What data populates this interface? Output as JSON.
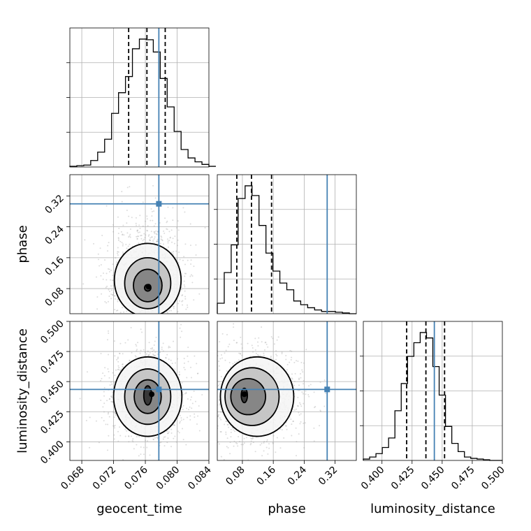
{
  "chart_data": {
    "type": "corner",
    "parameters": [
      {
        "name": "geocent_time",
        "range": [
          0.0665,
          0.084
        ],
        "ticks": [
          0.068,
          0.072,
          0.076,
          0.08,
          0.084
        ],
        "tick_labels": [
          "0.068",
          "0.072",
          "0.076",
          "0.080",
          "0.084"
        ],
        "truth": 0.0777,
        "quantiles": [
          0.0739,
          0.0762,
          0.0785
        ],
        "hist_edges_start": 0.0665,
        "hist_bin_width": 0.000875,
        "hist_counts": [
          1,
          2,
          3,
          10,
          23,
          43,
          83,
          115,
          140,
          183,
          198,
          197,
          178,
          137,
          93,
          55,
          27,
          14,
          8,
          4,
          1,
          1
        ]
      },
      {
        "name": "phase",
        "range": [
          0.015,
          0.375
        ],
        "ticks": [
          0.08,
          0.16,
          0.24,
          0.32
        ],
        "tick_labels": [
          "0.08",
          "0.16",
          "0.24",
          "0.32"
        ],
        "truth": 0.2995,
        "quantiles": [
          0.0655,
          0.1035,
          0.1555
        ],
        "hist_edges_start": 0.015,
        "hist_bin_width": 0.018,
        "hist_counts": [
          14,
          55,
          92,
          154,
          171,
          158,
          118,
          81,
          57,
          41,
          32,
          17,
          12,
          8,
          5,
          3,
          3,
          2,
          1,
          0
        ]
      },
      {
        "name": "luminosity_distance",
        "range": [
          0.3845,
          0.5
        ],
        "ticks": [
          0.4,
          0.425,
          0.45,
          0.475,
          0.5
        ],
        "tick_labels": [
          "0.400",
          "0.425",
          "0.450",
          "0.475",
          "0.500"
        ],
        "truth": 0.4435,
        "quantiles": [
          0.4205,
          0.4365,
          0.452
        ],
        "hist_edges_start": 0.3845,
        "hist_bin_width": 0.00525,
        "hist_counts": [
          2,
          5,
          10,
          19,
          33,
          73,
          113,
          153,
          173,
          188,
          180,
          138,
          96,
          50,
          25,
          13,
          5,
          3,
          2,
          1,
          0,
          0
        ]
      }
    ],
    "pairs": [
      {
        "x": "geocent_time",
        "y": "phase",
        "contours": [
          {
            "center": [
              0.0763,
              0.082
            ],
            "rx": 0.0004,
            "ry": 0.0085
          },
          {
            "center": [
              0.0763,
              0.088
            ],
            "rx": 0.0018,
            "ry": 0.042
          },
          {
            "center": [
              0.0763,
              0.094
            ],
            "rx": 0.0029,
            "ry": 0.066
          },
          {
            "center": [
              0.0763,
              0.102
            ],
            "rx": 0.0042,
            "ry": 0.095
          }
        ],
        "peak": [
          0.0764,
          0.085
        ]
      },
      {
        "x": "geocent_time",
        "y": "luminosity_distance",
        "contours": [
          {
            "center": [
              0.0763,
              0.4385
            ],
            "rx": 0.0005,
            "ry": 0.008
          },
          {
            "center": [
              0.0763,
              0.4375
            ],
            "rx": 0.0017,
            "ry": 0.014
          },
          {
            "center": [
              0.0763,
              0.4375
            ],
            "rx": 0.0029,
            "ry": 0.023
          },
          {
            "center": [
              0.0763,
              0.4375
            ],
            "rx": 0.0043,
            "ry": 0.033
          }
        ],
        "peak": [
          0.0768,
          0.4395
        ]
      },
      {
        "x": "phase",
        "y": "luminosity_distance",
        "contours": [
          {
            "center": [
              0.085,
              0.4385
            ],
            "rx": 0.008,
            "ry": 0.006
          },
          {
            "center": [
              0.095,
              0.4375
            ],
            "rx": 0.045,
            "ry": 0.015
          },
          {
            "center": [
              0.105,
              0.4375
            ],
            "rx": 0.07,
            "ry": 0.024
          },
          {
            "center": [
              0.118,
              0.4375
            ],
            "rx": 0.095,
            "ry": 0.033
          }
        ],
        "peak": [
          0.085,
          0.4395
        ]
      }
    ],
    "xlabels": [
      "geocent_time",
      "phase",
      "luminosity_distance"
    ],
    "ylabels": [
      "phase",
      "luminosity_distance"
    ],
    "grid": true,
    "truth_color": "#4682b4"
  }
}
